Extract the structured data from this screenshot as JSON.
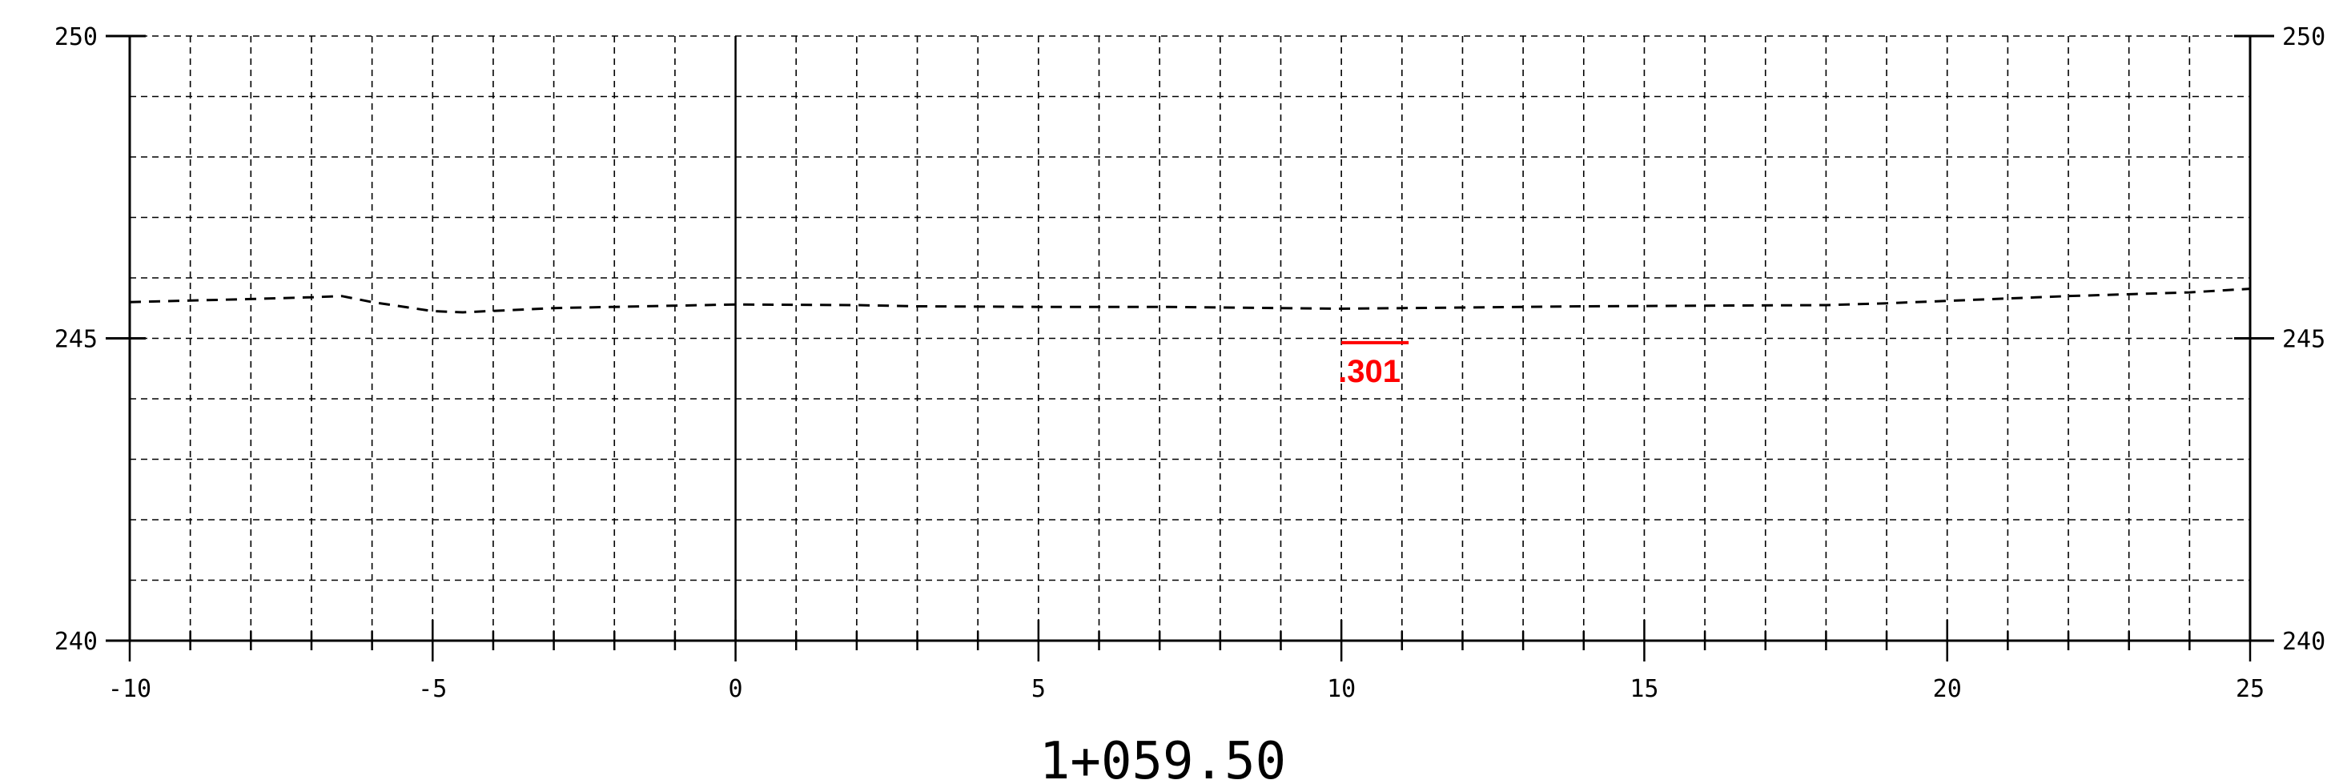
{
  "chart_data": {
    "type": "line",
    "title": "",
    "station_label": "1+059.50",
    "xlabel": "",
    "ylabel": "",
    "xlim": [
      -10,
      25
    ],
    "ylim": [
      240,
      250
    ],
    "x_ticks_major": [
      -10,
      -5,
      0,
      5,
      10,
      15,
      20,
      25
    ],
    "x_tick_labels": [
      "-10",
      "-5",
      "0",
      "5",
      "10",
      "15",
      "20",
      "25"
    ],
    "x_grid_step": 1,
    "y_ticks_major": [
      240,
      245,
      250
    ],
    "y_tick_labels": [
      "240",
      "245",
      "250"
    ],
    "y_grid_step": 1,
    "grid": true,
    "centerline_x": 0,
    "series": [
      {
        "line_style": "dashed",
        "color": "#000000",
        "x": [
          -10,
          -8,
          -7,
          -6.5,
          -6,
          -5,
          -4.5,
          -3,
          -2,
          0,
          2,
          3,
          5,
          7,
          9,
          10,
          12,
          14,
          16,
          18,
          19,
          20,
          22,
          24,
          25
        ],
        "y": [
          245.6,
          245.65,
          245.68,
          245.7,
          245.6,
          245.45,
          245.43,
          245.5,
          245.52,
          245.56,
          245.55,
          245.53,
          245.52,
          245.52,
          245.5,
          245.49,
          245.51,
          245.53,
          245.54,
          245.55,
          245.58,
          245.62,
          245.7,
          245.76,
          245.82
        ]
      }
    ],
    "annotations": [
      {
        "text": ".301",
        "x": 10,
        "y": 244.85,
        "color": "#ff0000"
      }
    ]
  }
}
